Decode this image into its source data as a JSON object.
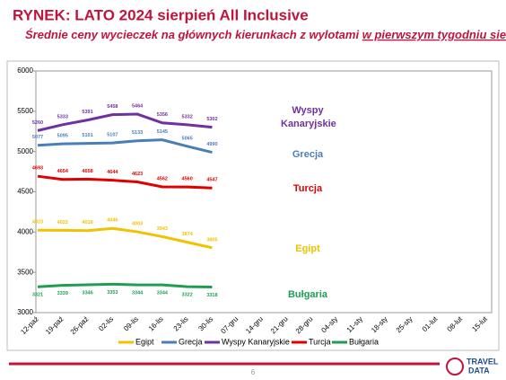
{
  "header": {
    "title": "RYNEK: LATO 2024 sierpień All Inclusive",
    "subtitle": "Średnie ceny wycieczek na głównych kierunkach z wylotami",
    "subtitle_underlined": "w pierwszym tygodniu sierpnia"
  },
  "chart_data": {
    "type": "line",
    "categories": [
      "12-paź",
      "19-paź",
      "26-paź",
      "02-lis",
      "09-lis",
      "16-lis",
      "23-lis",
      "30-lis",
      "07-gru",
      "14-gru",
      "21-gru",
      "28-gru",
      "04-sty",
      "11-sty",
      "18-sty",
      "25-sty",
      "01-lut",
      "08-lut",
      "15-lut"
    ],
    "series": [
      {
        "name": "Egipt",
        "color": "#f2c200",
        "values": [
          4023,
          4022,
          4018,
          4046,
          4003,
          3943,
          3874,
          3805,
          null,
          null,
          null,
          null,
          null,
          null,
          null,
          null,
          null,
          null,
          null
        ]
      },
      {
        "name": "Grecja",
        "color": "#4a7ebb",
        "values": [
          5077,
          5095,
          5101,
          5107,
          5133,
          5145,
          5065,
          4990,
          null,
          null,
          null,
          null,
          null,
          null,
          null,
          null,
          null,
          null,
          null
        ]
      },
      {
        "name": "Wyspy Kanaryjskie",
        "color": "#7030a0",
        "values": [
          5260,
          5333,
          5391,
          5458,
          5464,
          5356,
          5332,
          5302,
          null,
          null,
          null,
          null,
          null,
          null,
          null,
          null,
          null,
          null,
          null
        ]
      },
      {
        "name": "Turcja",
        "color": "#e00000",
        "values": [
          4693,
          4654,
          4658,
          4644,
          4623,
          4562,
          4560,
          4547,
          null,
          null,
          null,
          null,
          null,
          null,
          null,
          null,
          null,
          null,
          null
        ]
      },
      {
        "name": "Bułgaria",
        "color": "#1e9e50",
        "values": [
          3321,
          3339,
          3346,
          3353,
          3344,
          3344,
          3322,
          3318,
          null,
          null,
          null,
          null,
          null,
          null,
          null,
          null,
          null,
          null,
          null
        ]
      }
    ],
    "ylim": [
      3000,
      6000
    ],
    "yticks": [
      3000,
      3500,
      4000,
      4500,
      5000,
      5500,
      6000
    ],
    "grid": false,
    "legend": "bottom"
  },
  "footer": {
    "page_number": "6",
    "logo": [
      "TRAVEL",
      "DATA"
    ]
  }
}
